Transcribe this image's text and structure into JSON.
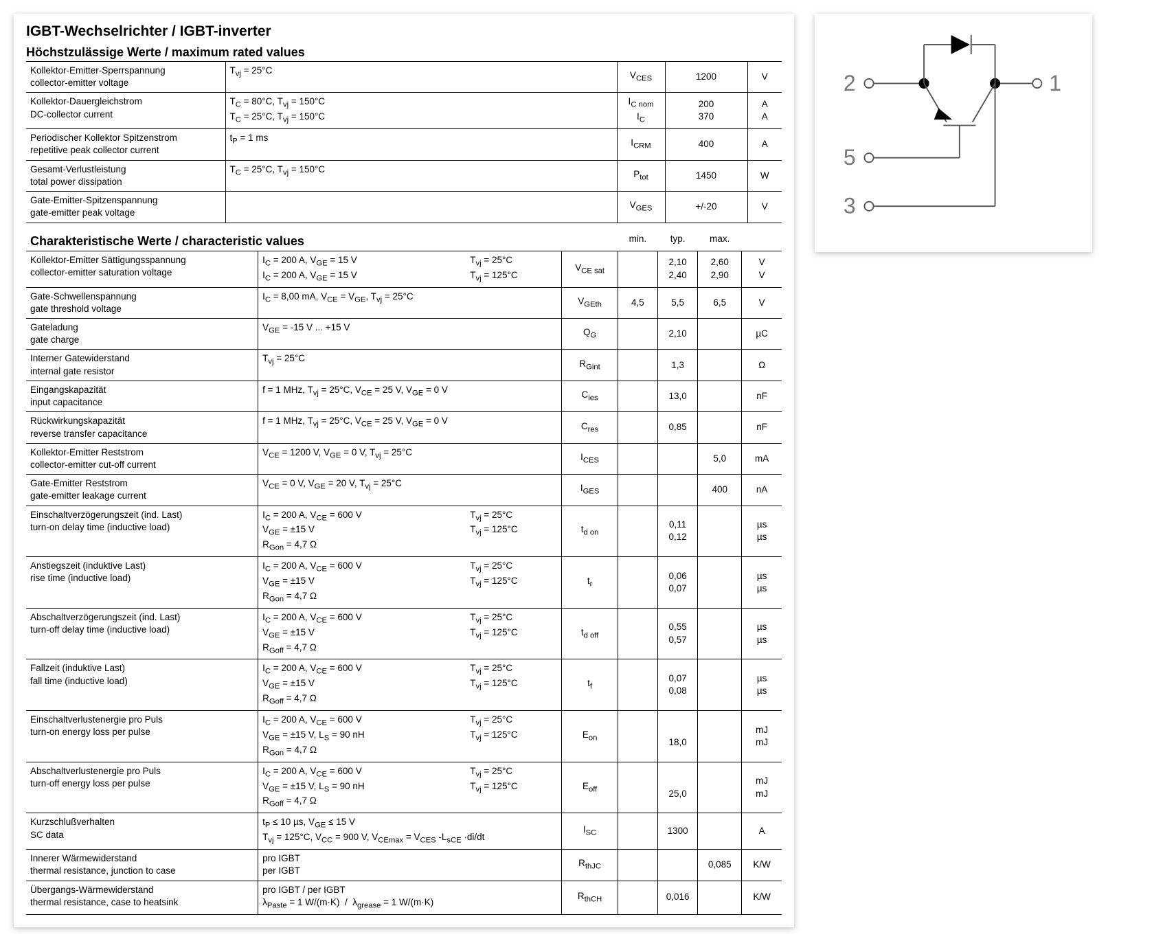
{
  "title": "IGBT-Wechselrichter / IGBT-inverter",
  "section1": "Höchstzulässige Werte / maximum rated values",
  "section2": "Charakteristische Werte / characteristic values",
  "hdr": {
    "min": "min.",
    "typ": "typ.",
    "max": "max."
  },
  "max_rows": [
    {
      "name_de": "Kollektor-Emitter-Sperrspannung",
      "name_en": "collector-emitter voltage",
      "cond": "T<sub>vj</sub> = 25°C",
      "sym": "V<sub>CES</sub>",
      "val": "1200",
      "unit": "V"
    },
    {
      "name_de": "Kollektor-Dauergleichstrom",
      "name_en": "DC-collector current",
      "cond": "T<sub>C</sub> = 80°C, T<sub>vj</sub> = 150°C<br>T<sub>C</sub> = 25°C, T<sub>vj</sub> = 150°C",
      "sym": "I<sub>C nom</sub><br>I<sub>C</sub>",
      "val": "200<br>370",
      "unit": "A<br>A"
    },
    {
      "name_de": "Periodischer Kollektor Spitzenstrom",
      "name_en": "repetitive peak collector current",
      "cond": "t<sub>P</sub> = 1 ms",
      "sym": "I<sub>CRM</sub>",
      "val": "400",
      "unit": "A"
    },
    {
      "name_de": "Gesamt-Verlustleistung",
      "name_en": "total power dissipation",
      "cond": "T<sub>C</sub> = 25°C, T<sub>vj</sub> = 150°C",
      "sym": "P<sub>tot</sub>",
      "val": "1450",
      "unit": "W"
    },
    {
      "name_de": "Gate-Emitter-Spitzenspannung",
      "name_en": "gate-emitter peak voltage",
      "cond": "",
      "sym": "V<sub>GES</sub>",
      "val": "+/-20",
      "unit": "V"
    }
  ],
  "char_rows": [
    {
      "name_de": "Kollektor-Emitter Sättigungsspannung",
      "name_en": "collector-emitter saturation voltage",
      "cond": "I<sub>C</sub> = 200 A, V<sub>GE</sub> = 15 V<br>I<sub>C</sub> = 200 A, V<sub>GE</sub> = 15 V",
      "cond2": "T<sub>vj</sub> = 25°C<br>T<sub>vj</sub> = 125°C",
      "sym": "V<sub>CE sat</sub>",
      "min": "",
      "typ": "2,10<br>2,40",
      "max": "2,60<br>2,90",
      "unit": "V<br>V"
    },
    {
      "name_de": "Gate-Schwellenspannung",
      "name_en": "gate threshold voltage",
      "cond": "I<sub>C</sub> = 8,00 mA, V<sub>CE</sub> = V<sub>GE</sub>, T<sub>vj</sub> = 25°C",
      "cond2": "",
      "sym": "V<sub>GEth</sub>",
      "min": "4,5",
      "typ": "5,5",
      "max": "6,5",
      "unit": "V"
    },
    {
      "name_de": "Gateladung",
      "name_en": "gate charge",
      "cond": "V<sub>GE</sub> = -15 V ... +15 V",
      "cond2": "",
      "sym": "Q<sub>G</sub>",
      "min": "",
      "typ": "2,10",
      "max": "",
      "unit": "µC"
    },
    {
      "name_de": "Interner Gatewiderstand",
      "name_en": "internal gate resistor",
      "cond": "T<sub>vj</sub> = 25°C",
      "cond2": "",
      "sym": "R<sub>Gint</sub>",
      "min": "",
      "typ": "1,3",
      "max": "",
      "unit": "Ω"
    },
    {
      "name_de": "Eingangskapazität",
      "name_en": "input capacitance",
      "cond": "f = 1 MHz, T<sub>vj</sub> = 25°C, V<sub>CE</sub> = 25 V, V<sub>GE</sub> = 0 V",
      "cond2": "",
      "sym": "C<sub>ies</sub>",
      "min": "",
      "typ": "13,0",
      "max": "",
      "unit": "nF"
    },
    {
      "name_de": "Rückwirkungskapazität",
      "name_en": "reverse transfer capacitance",
      "cond": "f = 1 MHz, T<sub>vj</sub> = 25°C, V<sub>CE</sub> = 25 V, V<sub>GE</sub> = 0 V",
      "cond2": "",
      "sym": "C<sub>res</sub>",
      "min": "",
      "typ": "0,85",
      "max": "",
      "unit": "nF"
    },
    {
      "name_de": "Kollektor-Emitter Reststrom",
      "name_en": "collector-emitter cut-off current",
      "cond": "V<sub>CE</sub> = 1200 V, V<sub>GE</sub> = 0 V, T<sub>vj</sub> = 25°C",
      "cond2": "",
      "sym": "I<sub>CES</sub>",
      "min": "",
      "typ": "",
      "max": "5,0",
      "unit": "mA"
    },
    {
      "name_de": "Gate-Emitter Reststrom",
      "name_en": "gate-emitter leakage current",
      "cond": "V<sub>CE</sub> = 0 V, V<sub>GE</sub> = 20 V, T<sub>vj</sub> = 25°C",
      "cond2": "",
      "sym": "I<sub>GES</sub>",
      "min": "",
      "typ": "",
      "max": "400",
      "unit": "nA"
    },
    {
      "name_de": "Einschaltverzögerungszeit (ind. Last)",
      "name_en": "turn-on delay time (inductive load)",
      "cond": "I<sub>C</sub> = 200 A, V<sub>CE</sub> = 600 V<br>V<sub>GE</sub> = ±15 V<br>R<sub>Gon</sub> = 4,7 Ω",
      "cond2": "T<sub>vj</sub> = 25°C<br>T<sub>vj</sub> = 125°C",
      "sym": "t<sub>d on</sub>",
      "min": "",
      "typ": "0,11<br>0,12",
      "max": "",
      "unit": "µs<br>µs"
    },
    {
      "name_de": "Anstiegszeit (induktive Last)",
      "name_en": "rise time (inductive load)",
      "cond": "I<sub>C</sub> = 200 A, V<sub>CE</sub> = 600 V<br>V<sub>GE</sub> = ±15 V<br>R<sub>Gon</sub> = 4,7 Ω",
      "cond2": "T<sub>vj</sub> = 25°C<br>T<sub>vj</sub> = 125°C",
      "sym": "t<sub>r</sub>",
      "min": "",
      "typ": "0,06<br>0,07",
      "max": "",
      "unit": "µs<br>µs"
    },
    {
      "name_de": "Abschaltverzögerungszeit (ind. Last)",
      "name_en": "turn-off delay time (inductive load)",
      "cond": "I<sub>C</sub> = 200 A, V<sub>CE</sub> = 600 V<br>V<sub>GE</sub> = ±15 V<br>R<sub>Goff</sub> = 4,7 Ω",
      "cond2": "T<sub>vj</sub> = 25°C<br>T<sub>vj</sub> = 125°C",
      "sym": "t<sub>d off</sub>",
      "min": "",
      "typ": "0,55<br>0,57",
      "max": "",
      "unit": "µs<br>µs"
    },
    {
      "name_de": "Fallzeit (induktive Last)",
      "name_en": "fall time (inductive load)",
      "cond": "I<sub>C</sub> = 200 A, V<sub>CE</sub> = 600 V<br>V<sub>GE</sub> = ±15 V<br>R<sub>Goff</sub> = 4,7 Ω",
      "cond2": "T<sub>vj</sub> = 25°C<br>T<sub>vj</sub> = 125°C",
      "sym": "t<sub>f</sub>",
      "min": "",
      "typ": "0,07<br>0,08",
      "max": "",
      "unit": "µs<br>µs"
    },
    {
      "name_de": "Einschaltverlustenergie pro Puls",
      "name_en": "turn-on energy loss per pulse",
      "cond": "I<sub>C</sub> = 200 A, V<sub>CE</sub> = 600 V<br>V<sub>GE</sub> = ±15 V, L<sub>S</sub> = 90 nH<br>R<sub>Gon</sub> = 4,7 Ω",
      "cond2": "T<sub>vj</sub> = 25°C<br>T<sub>vj</sub> = 125°C",
      "sym": "E<sub>on</sub>",
      "min": "",
      "typ": "<br>18,0",
      "max": "",
      "unit": "mJ<br>mJ"
    },
    {
      "name_de": "Abschaltverlustenergie pro Puls",
      "name_en": "turn-off energy loss per pulse",
      "cond": "I<sub>C</sub> = 200 A, V<sub>CE</sub> = 600 V<br>V<sub>GE</sub> = ±15 V, L<sub>S</sub> = 90 nH<br>R<sub>Goff</sub> = 4,7 Ω",
      "cond2": "T<sub>vj</sub> = 25°C<br>T<sub>vj</sub> = 125°C",
      "sym": "E<sub>off</sub>",
      "min": "",
      "typ": "<br>25,0",
      "max": "",
      "unit": "mJ<br>mJ"
    },
    {
      "name_de": "Kurzschlußverhalten",
      "name_en": "SC data",
      "cond": "t<sub>P</sub> ≤ 10 µs, V<sub>GE</sub> ≤ 15 V<br>T<sub>vj</sub> = 125°C, V<sub>CC</sub> = 900 V, V<sub>CEmax</sub> = V<sub>CES</sub> -L<sub>sCE</sub> ·di/dt",
      "cond2": "",
      "sym": "I<sub>SC</sub>",
      "min": "",
      "typ": "1300",
      "max": "",
      "unit": "A"
    },
    {
      "name_de": "Innerer Wärmewiderstand",
      "name_en": "thermal resistance, junction to case",
      "cond": "pro IGBT<br>per IGBT",
      "cond2": "",
      "sym": "R<sub>thJC</sub>",
      "min": "",
      "typ": "",
      "max": "0,085",
      "unit": "K/W"
    },
    {
      "name_de": "Übergangs-Wärmewiderstand",
      "name_en": "thermal resistance, case to heatsink",
      "cond": "pro IGBT / per IGBT<br>λ<sub>Paste</sub> = 1 W/(m·K)&nbsp;&nbsp;/&nbsp;&nbsp;λ<sub>grease</sub> = 1 W/(m·K)",
      "cond2": "",
      "sym": "R<sub>thCH</sub>",
      "min": "",
      "typ": "0,016",
      "max": "",
      "unit": "K/W"
    }
  ],
  "pins": {
    "p1": "1",
    "p2": "2",
    "p3": "3",
    "p5": "5"
  }
}
